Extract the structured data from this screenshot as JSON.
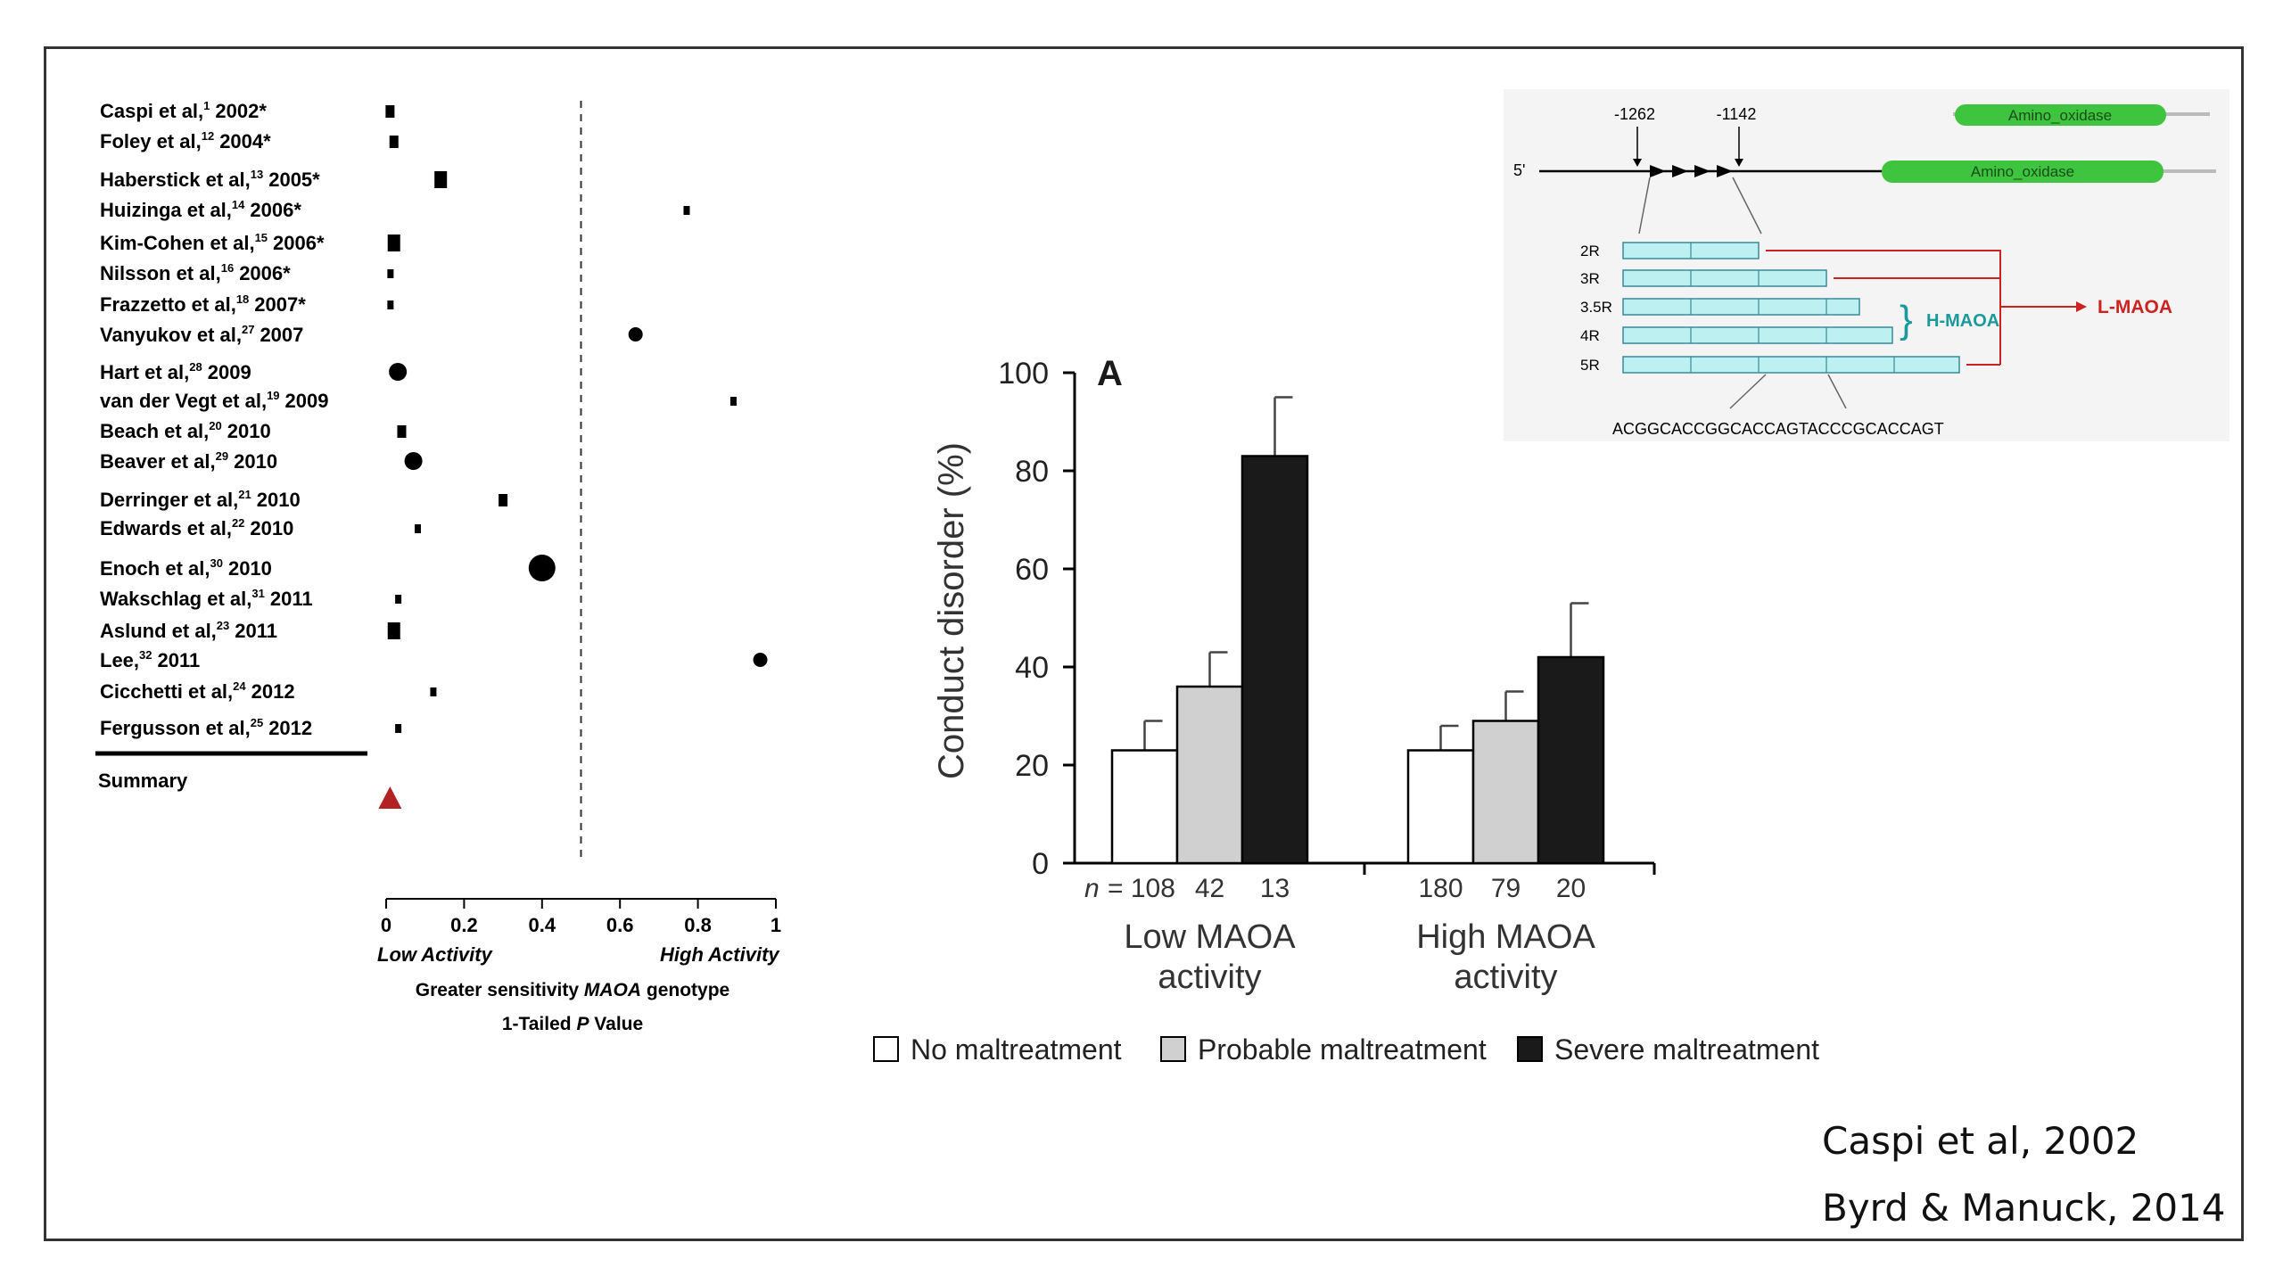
{
  "forest": {
    "type": "scatter",
    "studies": [
      {
        "author": "Caspi et al,",
        "ref": "1",
        "year": "2002*",
        "p": 0.01,
        "size": 1
      },
      {
        "author": "Foley et al,",
        "ref": "12",
        "year": "2004*",
        "p": 0.02,
        "size": 1
      },
      {
        "author": "Haberstick et al,",
        "ref": "13",
        "year": "2005*",
        "p": 0.14,
        "size": 2
      },
      {
        "author": "Huizinga et al,",
        "ref": "14",
        "year": "2006*",
        "p": 0.77,
        "size": 0
      },
      {
        "author": "Kim-Cohen et al,",
        "ref": "15",
        "year": "2006*",
        "p": 0.02,
        "size": 2
      },
      {
        "author": "Nilsson et al,",
        "ref": "16",
        "year": "2006*",
        "p": 0.01,
        "size": 0
      },
      {
        "author": "Frazzetto et al,",
        "ref": "18",
        "year": "2007*",
        "p": 0.01,
        "size": 0
      },
      {
        "author": "Vanyukov et al,",
        "ref": "27",
        "year": "2007",
        "p": 0.64,
        "size": 1
      },
      {
        "author": "Hart et al,",
        "ref": "28",
        "year": "2009",
        "p": 0.03,
        "size": 2
      },
      {
        "author": "van der Vegt et al,",
        "ref": "19",
        "year": "2009",
        "p": 0.89,
        "size": 0
      },
      {
        "author": "Beach et al,",
        "ref": "20",
        "year": "2010",
        "p": 0.04,
        "size": 1
      },
      {
        "author": "Beaver et al,",
        "ref": "29",
        "year": "2010",
        "p": 0.07,
        "size": 2
      },
      {
        "author": "Derringer et al,",
        "ref": "21",
        "year": "2010",
        "p": 0.3,
        "size": 1
      },
      {
        "author": "Edwards et al,",
        "ref": "22",
        "year": "2010",
        "p": 0.08,
        "size": 0
      },
      {
        "author": "Enoch et al,",
        "ref": "30",
        "year": "2010",
        "p": 0.4,
        "size": 3
      },
      {
        "author": "Wakschlag et al,",
        "ref": "31",
        "year": "2011",
        "p": 0.03,
        "size": 0
      },
      {
        "author": "Aslund et al,",
        "ref": "23",
        "year": "2011",
        "p": 0.02,
        "size": 2
      },
      {
        "author": "Lee,",
        "ref": "32",
        "year": "2011",
        "p": 0.96,
        "size": 1
      },
      {
        "author": "Cicchetti et al,",
        "ref": "24",
        "year": "2012",
        "p": 0.12,
        "size": 0
      },
      {
        "author": "Fergusson et al,",
        "ref": "25",
        "year": "2012",
        "p": 0.03,
        "size": 0
      }
    ],
    "summary_label": "Summary",
    "summary_p": 0.01,
    "threshold": 0.5,
    "xticks": [
      "0",
      "0.2",
      "0.4",
      "0.6",
      "0.8",
      "1"
    ],
    "xlim": [
      0,
      1
    ],
    "low_label": "Low Activity",
    "high_label": "High Activity",
    "xlabel_pre": "Greater sensitivity ",
    "xlabel_em": "MAOA",
    "xlabel_post": " genotype",
    "xlabel2_pre": "1-Tailed ",
    "xlabel2_em": "P",
    "xlabel2_post": " Value",
    "colors": {
      "summary": "#b22222"
    }
  },
  "chart_data": {
    "type": "bar",
    "panel_label": "A",
    "ylabel": "Conduct disorder (%)",
    "ylim": [
      0,
      100
    ],
    "yticks": [
      "0",
      "20",
      "40",
      "60",
      "80",
      "100"
    ],
    "n_prefix": "n =",
    "groups": [
      {
        "label_line1": "Low MAOA",
        "label_line2": "activity",
        "n": [
          "108",
          "42",
          "13"
        ],
        "values": [
          23,
          36,
          83
        ],
        "errors": [
          29,
          43,
          95
        ]
      },
      {
        "label_line1": "High MAOA",
        "label_line2": "activity",
        "n": [
          "180",
          "79",
          "20"
        ],
        "values": [
          23,
          29,
          42
        ],
        "errors": [
          28,
          35,
          53
        ]
      }
    ],
    "series": [
      {
        "name": "No maltreatment",
        "color": "#ffffff"
      },
      {
        "name": "Probable maltreatment",
        "color": "#d0d0d0"
      },
      {
        "name": "Severe maltreatment",
        "color": "#1a1a1a"
      }
    ]
  },
  "gene": {
    "pos1": "-1262",
    "pos2": "-1142",
    "five_prime": "5'",
    "domain": "Amino_oxidase",
    "repeats": [
      "2R",
      "3R",
      "3.5R",
      "4R",
      "5R"
    ],
    "h_label": "H-MAOA",
    "l_label": "L-MAOA",
    "sequence": "ACGGCACCGGCACCAGTACCCGCACCAGT",
    "colors": {
      "domain": "#3ec43e",
      "repeat": "#bdf0f0",
      "h": "#1a9a9a",
      "l": "#cc2222"
    }
  },
  "citations": [
    "Caspi et al, 2002",
    "Byrd & Manuck, 2014"
  ]
}
